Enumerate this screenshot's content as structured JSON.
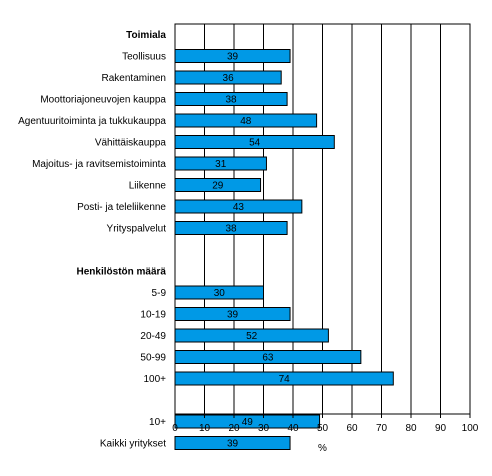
{
  "chart_data": {
    "type": "bar",
    "orientation": "horizontal",
    "xlabel": "%",
    "xlim": [
      0,
      100
    ],
    "xticks": [
      0,
      10,
      20,
      30,
      40,
      50,
      60,
      70,
      80,
      90,
      100
    ],
    "grid": "vertical",
    "bar_color": "#0099e6",
    "rows": [
      {
        "kind": "group",
        "label": "Toimiala"
      },
      {
        "kind": "bar",
        "label": "Teollisuus",
        "value": 39
      },
      {
        "kind": "bar",
        "label": "Rakentaminen",
        "value": 36
      },
      {
        "kind": "bar",
        "label": "Moottoriajoneuvojen kauppa",
        "value": 38
      },
      {
        "kind": "bar",
        "label": "Agentuuritoiminta ja tukkukauppa",
        "value": 48
      },
      {
        "kind": "bar",
        "label": "Vähittäiskauppa",
        "value": 54
      },
      {
        "kind": "bar",
        "label": "Majoitus- ja ravitsemistoiminta",
        "value": 31
      },
      {
        "kind": "bar",
        "label": "Liikenne",
        "value": 29
      },
      {
        "kind": "bar",
        "label": "Posti- ja teleliikenne",
        "value": 43
      },
      {
        "kind": "bar",
        "label": "Yrityspalvelut",
        "value": 38
      },
      {
        "kind": "gap"
      },
      {
        "kind": "group",
        "label": "Henkilöstön määrä"
      },
      {
        "kind": "bar",
        "label": "5-9",
        "value": 30
      },
      {
        "kind": "bar",
        "label": "10-19",
        "value": 39
      },
      {
        "kind": "bar",
        "label": "20-49",
        "value": 52
      },
      {
        "kind": "bar",
        "label": "50-99",
        "value": 63
      },
      {
        "kind": "bar",
        "label": "100+",
        "value": 74
      },
      {
        "kind": "gap"
      },
      {
        "kind": "bar",
        "label": "10+",
        "value": 49
      },
      {
        "kind": "bar",
        "label": "Kaikki yritykset",
        "value": 39
      }
    ]
  }
}
